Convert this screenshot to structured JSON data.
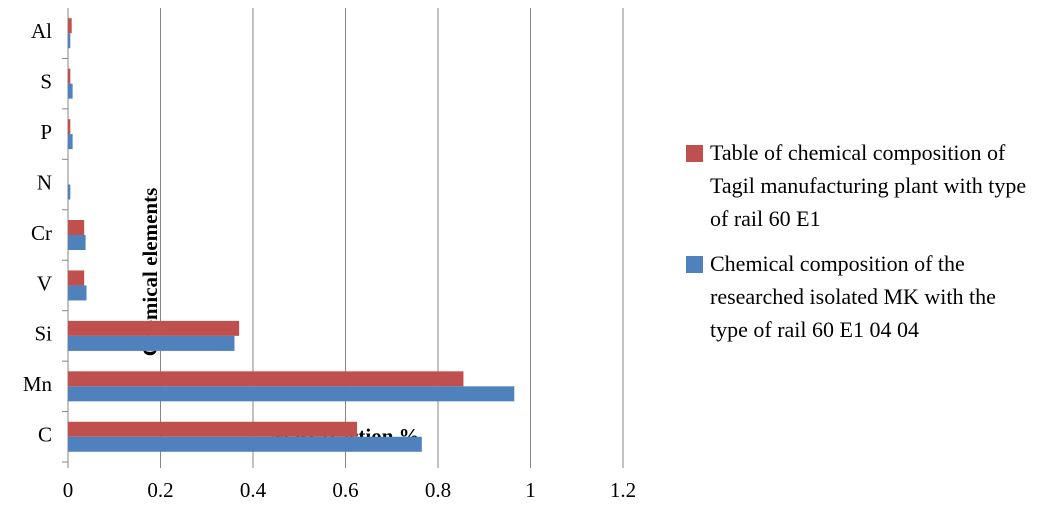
{
  "chart_data": {
    "type": "hbar",
    "x_label": "Mass fraction %",
    "y_label": "Chemical elements",
    "categories": [
      "C",
      "Mn",
      "Si",
      "V",
      "Cr",
      "N",
      "P",
      "S",
      "Al"
    ],
    "series": [
      {
        "name": "Table of chemical composition of Tagil manufacturing plant with type of rail 60 E1",
        "color": "#c0504d",
        "values": [
          0.625,
          0.855,
          0.37,
          0.035,
          0.035,
          0,
          0.005,
          0.005,
          0.008
        ]
      },
      {
        "name": "Chemical composition of the researched isolated MK with the type of rail 60 E1 04 04",
        "color": "#4f81bd",
        "values": [
          0.765,
          0.965,
          0.36,
          0.04,
          0.038,
          0.005,
          0.01,
          0.01,
          0.005
        ]
      }
    ],
    "xlim": [
      0,
      1.2
    ],
    "xticks": [
      0,
      0.2,
      0.4,
      0.6,
      0.8,
      1,
      1.2
    ],
    "grid": true,
    "legend": "right"
  }
}
